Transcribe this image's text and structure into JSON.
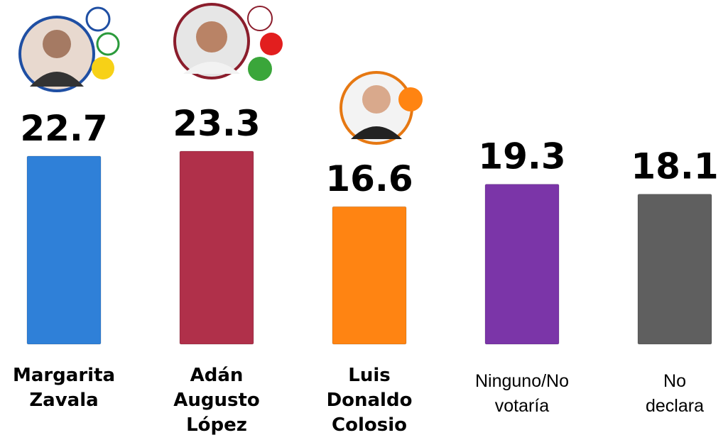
{
  "chart_data": {
    "type": "bar",
    "categories": [
      "Margarita Zavala",
      "Adán Augusto López",
      "Luis Donaldo Colosio",
      "Ninguno/No votaría",
      "No declara"
    ],
    "values": [
      22.7,
      23.3,
      16.6,
      19.3,
      18.1
    ],
    "colors": [
      "#2f80d8",
      "#b0304a",
      "#ff8412",
      "#7b35a8",
      "#5f5f5f"
    ],
    "bold_labels": [
      true,
      true,
      true,
      false,
      false
    ],
    "ylim": [
      0,
      40
    ],
    "grid": false
  }
}
